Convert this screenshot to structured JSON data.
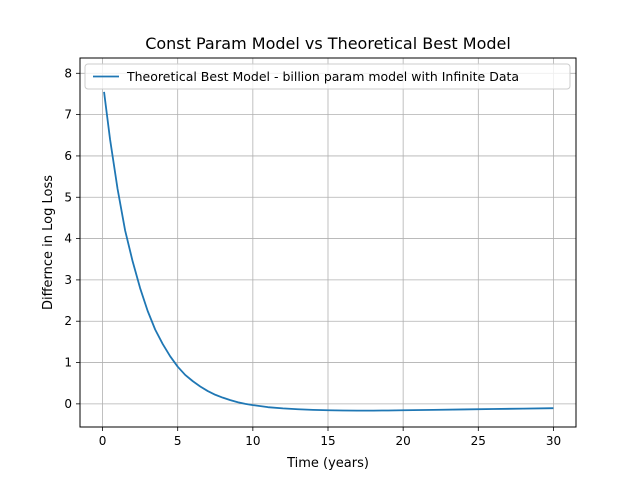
{
  "chart_data": {
    "type": "line",
    "title": "Const Param Model vs Theoretical Best Model",
    "xlabel": "Time (years)",
    "ylabel": "Differnce in Log Loss",
    "xlim": [
      -1.5,
      31.5
    ],
    "ylim": [
      -0.56,
      8.37
    ],
    "x_ticks": [
      0,
      5,
      10,
      15,
      20,
      25,
      30
    ],
    "y_ticks": [
      0,
      1,
      2,
      3,
      4,
      5,
      6,
      7,
      8
    ],
    "grid": true,
    "legend_position": "top-right",
    "series": [
      {
        "name": "Theoretical Best Model - billion param model with Infinite Data",
        "color": "#1f77b4",
        "x": [
          0.1,
          0.5,
          1,
          1.5,
          2,
          2.5,
          3,
          3.5,
          4,
          4.5,
          5,
          5.5,
          6,
          6.5,
          7,
          7.5,
          8,
          8.5,
          9,
          9.5,
          10,
          11,
          12,
          13,
          14,
          15,
          16,
          17,
          18,
          19,
          20,
          22,
          24,
          26,
          28,
          30
        ],
        "y": [
          7.55,
          6.4,
          5.2,
          4.2,
          3.45,
          2.8,
          2.25,
          1.8,
          1.45,
          1.15,
          0.9,
          0.7,
          0.55,
          0.42,
          0.31,
          0.22,
          0.15,
          0.09,
          0.04,
          0.0,
          -0.03,
          -0.08,
          -0.11,
          -0.13,
          -0.145,
          -0.155,
          -0.16,
          -0.163,
          -0.163,
          -0.16,
          -0.155,
          -0.145,
          -0.135,
          -0.125,
          -0.115,
          -0.105
        ]
      }
    ]
  }
}
